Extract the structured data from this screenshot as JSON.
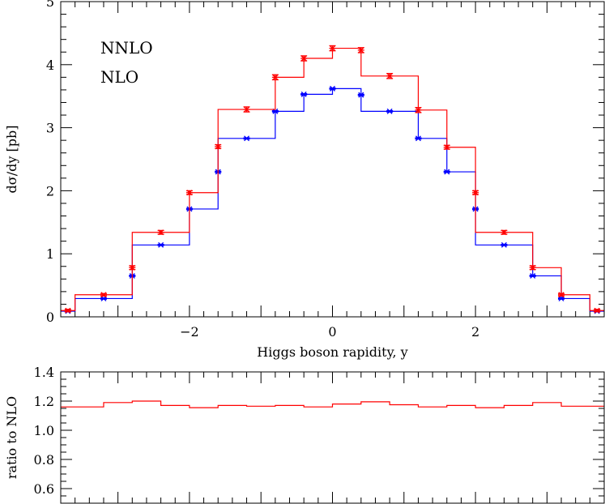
{
  "chart_data": [
    {
      "type": "line",
      "step": true,
      "xlabel": "Higgs boson rapidity, y",
      "ylabel": "dσ/dy [pb]",
      "xlim": [
        -3.8,
        3.8
      ],
      "ylim": [
        0,
        5
      ],
      "x_ticks": [
        -2,
        0,
        2
      ],
      "y_ticks": [
        0,
        1,
        2,
        3,
        4,
        5
      ],
      "bin_edges": [
        -3.8,
        -3.6,
        -3.2,
        -2.8,
        -2.4,
        -2.0,
        -1.6,
        -1.2,
        -0.8,
        -0.4,
        0.0,
        0.4,
        0.8,
        1.2,
        1.6,
        2.0,
        2.4,
        2.8,
        3.2,
        3.6,
        3.8
      ],
      "bin_centers": [
        -3.7,
        -3.4,
        -3.0,
        -2.6,
        -2.2,
        -1.8,
        -1.4,
        -1.0,
        -0.6,
        -0.2,
        0.2,
        0.6,
        1.0,
        1.4,
        1.8,
        2.2,
        2.6,
        3.0,
        3.4,
        3.7
      ],
      "point_x": [
        -3.7,
        -3.2,
        -2.8,
        -2.4,
        -2.0,
        -1.6,
        -1.2,
        -0.8,
        -0.4,
        0.0,
        0.4,
        0.8,
        1.2,
        1.6,
        2.0,
        2.4,
        2.8,
        3.2,
        3.7
      ],
      "series": [
        {
          "name": "NNLO",
          "color": "#ff0000",
          "values": [
            0.1,
            0.35,
            0.78,
            1.34,
            1.97,
            2.7,
            3.29,
            3.8,
            4.1,
            4.26,
            4.23,
            3.82,
            3.28,
            2.69,
            1.97,
            1.34,
            0.78,
            0.35,
            0.1
          ],
          "errors": [
            0.02,
            0.02,
            0.03,
            0.03,
            0.03,
            0.03,
            0.04,
            0.04,
            0.04,
            0.04,
            0.04,
            0.04,
            0.04,
            0.03,
            0.03,
            0.03,
            0.03,
            0.02,
            0.02
          ]
        },
        {
          "name": "NLO",
          "color": "#0000ff",
          "values": [
            0.09,
            0.29,
            0.65,
            1.14,
            1.71,
            2.3,
            2.83,
            3.26,
            3.53,
            3.62,
            3.52,
            3.26,
            2.83,
            2.3,
            1.71,
            1.14,
            0.65,
            0.29,
            0.09
          ],
          "errors": [
            0.01,
            0.01,
            0.01,
            0.01,
            0.01,
            0.01,
            0.01,
            0.01,
            0.01,
            0.01,
            0.01,
            0.01,
            0.01,
            0.01,
            0.01,
            0.01,
            0.01,
            0.01,
            0.01
          ]
        }
      ],
      "legend": {
        "placement": "top-left",
        "entries": [
          "NNLO",
          "NLO"
        ]
      }
    },
    {
      "type": "line",
      "step": true,
      "ylabel": "ratio to NLO",
      "xlim": [
        -3.8,
        3.8
      ],
      "ylim": [
        0.5,
        1.4
      ],
      "y_ticks": [
        0.6,
        0.8,
        1.0,
        1.2,
        1.4
      ],
      "y_tick_labels": [
        "0.6",
        "0.8",
        "1.0",
        "1.2",
        "1.4"
      ],
      "bin_edges": [
        -3.8,
        -3.2,
        -2.8,
        -2.4,
        -2.0,
        -1.6,
        -1.2,
        -0.8,
        -0.4,
        0.0,
        0.4,
        0.8,
        1.2,
        1.6,
        2.0,
        2.4,
        2.8,
        3.2,
        3.8
      ],
      "series": [
        {
          "name": "",
          "color": "#ff0000",
          "values": [
            1.16,
            1.19,
            1.2,
            1.17,
            1.155,
            1.17,
            1.165,
            1.17,
            1.16,
            1.18,
            1.195,
            1.175,
            1.16,
            1.17,
            1.155,
            1.17,
            1.19,
            1.165,
            1.16
          ]
        }
      ]
    }
  ]
}
